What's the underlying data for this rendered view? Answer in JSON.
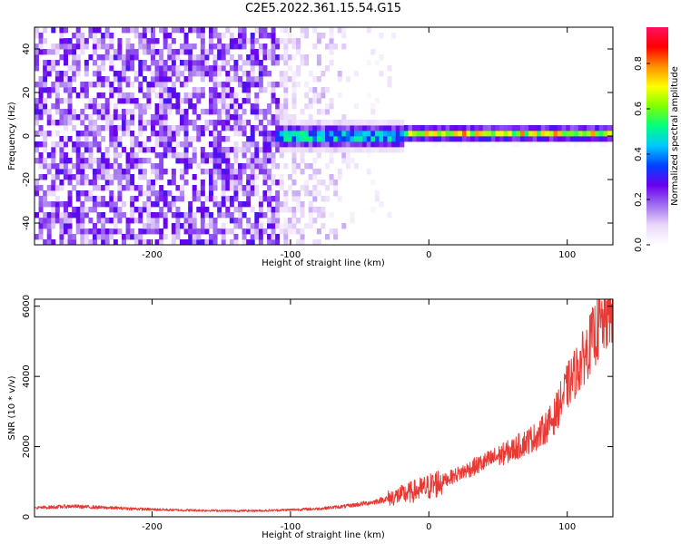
{
  "title": "C2E5.2022.361.15.54.G15",
  "chart_data": [
    {
      "type": "heatmap",
      "xlabel": "Height of straight line (km)",
      "ylabel": "Frequency (Hz)",
      "xlim": [
        -285,
        133
      ],
      "ylim": [
        -50,
        50
      ],
      "xticks": [
        -200,
        -100,
        0,
        100
      ],
      "yticks": [
        -40,
        -20,
        0,
        20,
        40
      ],
      "colorbar": {
        "label": "Normalized spectral amplitude",
        "range": [
          0,
          0.96
        ],
        "ticks": [
          0.0,
          0.2,
          0.4,
          0.6,
          0.8
        ],
        "colors": [
          "#ffffff",
          "#ead8fa",
          "#a070f0",
          "#6a00ee",
          "#0040ff",
          "#00c8ff",
          "#00ff80",
          "#80ff00",
          "#ffff00",
          "#ff9000",
          "#ff0000",
          "#ff1060"
        ]
      },
      "features": [
        {
          "description_x_range": [
            -285,
            -110
          ],
          "level": "broadband noise 0.05-0.25"
        },
        {
          "description_x_range": [
            -110,
            -20
          ],
          "level": "tone near 0 Hz 0.3-0.6"
        },
        {
          "description_x_range": [
            -20,
            133
          ],
          "level": "narrow tone near 0-2 Hz 0.5-0.9"
        }
      ]
    },
    {
      "type": "line",
      "xlabel": "Height of straight line (km)",
      "ylabel": "SNR (10 * v/v)",
      "xlim": [
        -285,
        133
      ],
      "ylim": [
        0,
        6200
      ],
      "xticks": [
        -200,
        -100,
        0,
        100
      ],
      "yticks": [
        0,
        2000,
        4000,
        6000
      ],
      "color": "#e83a35",
      "series": [
        {
          "x": [
            -285,
            -260,
            -240,
            -220,
            -200,
            -180,
            -160,
            -140,
            -120,
            -100,
            -80,
            -60,
            -40,
            -20,
            0,
            20,
            40,
            60,
            80,
            90,
            100,
            110,
            120,
            133
          ],
          "values": [
            250,
            300,
            270,
            240,
            210,
            190,
            180,
            170,
            175,
            200,
            230,
            300,
            420,
            620,
            850,
            1200,
            1550,
            1900,
            2350,
            2800,
            3700,
            4400,
            5200,
            5950
          ]
        }
      ]
    }
  ]
}
